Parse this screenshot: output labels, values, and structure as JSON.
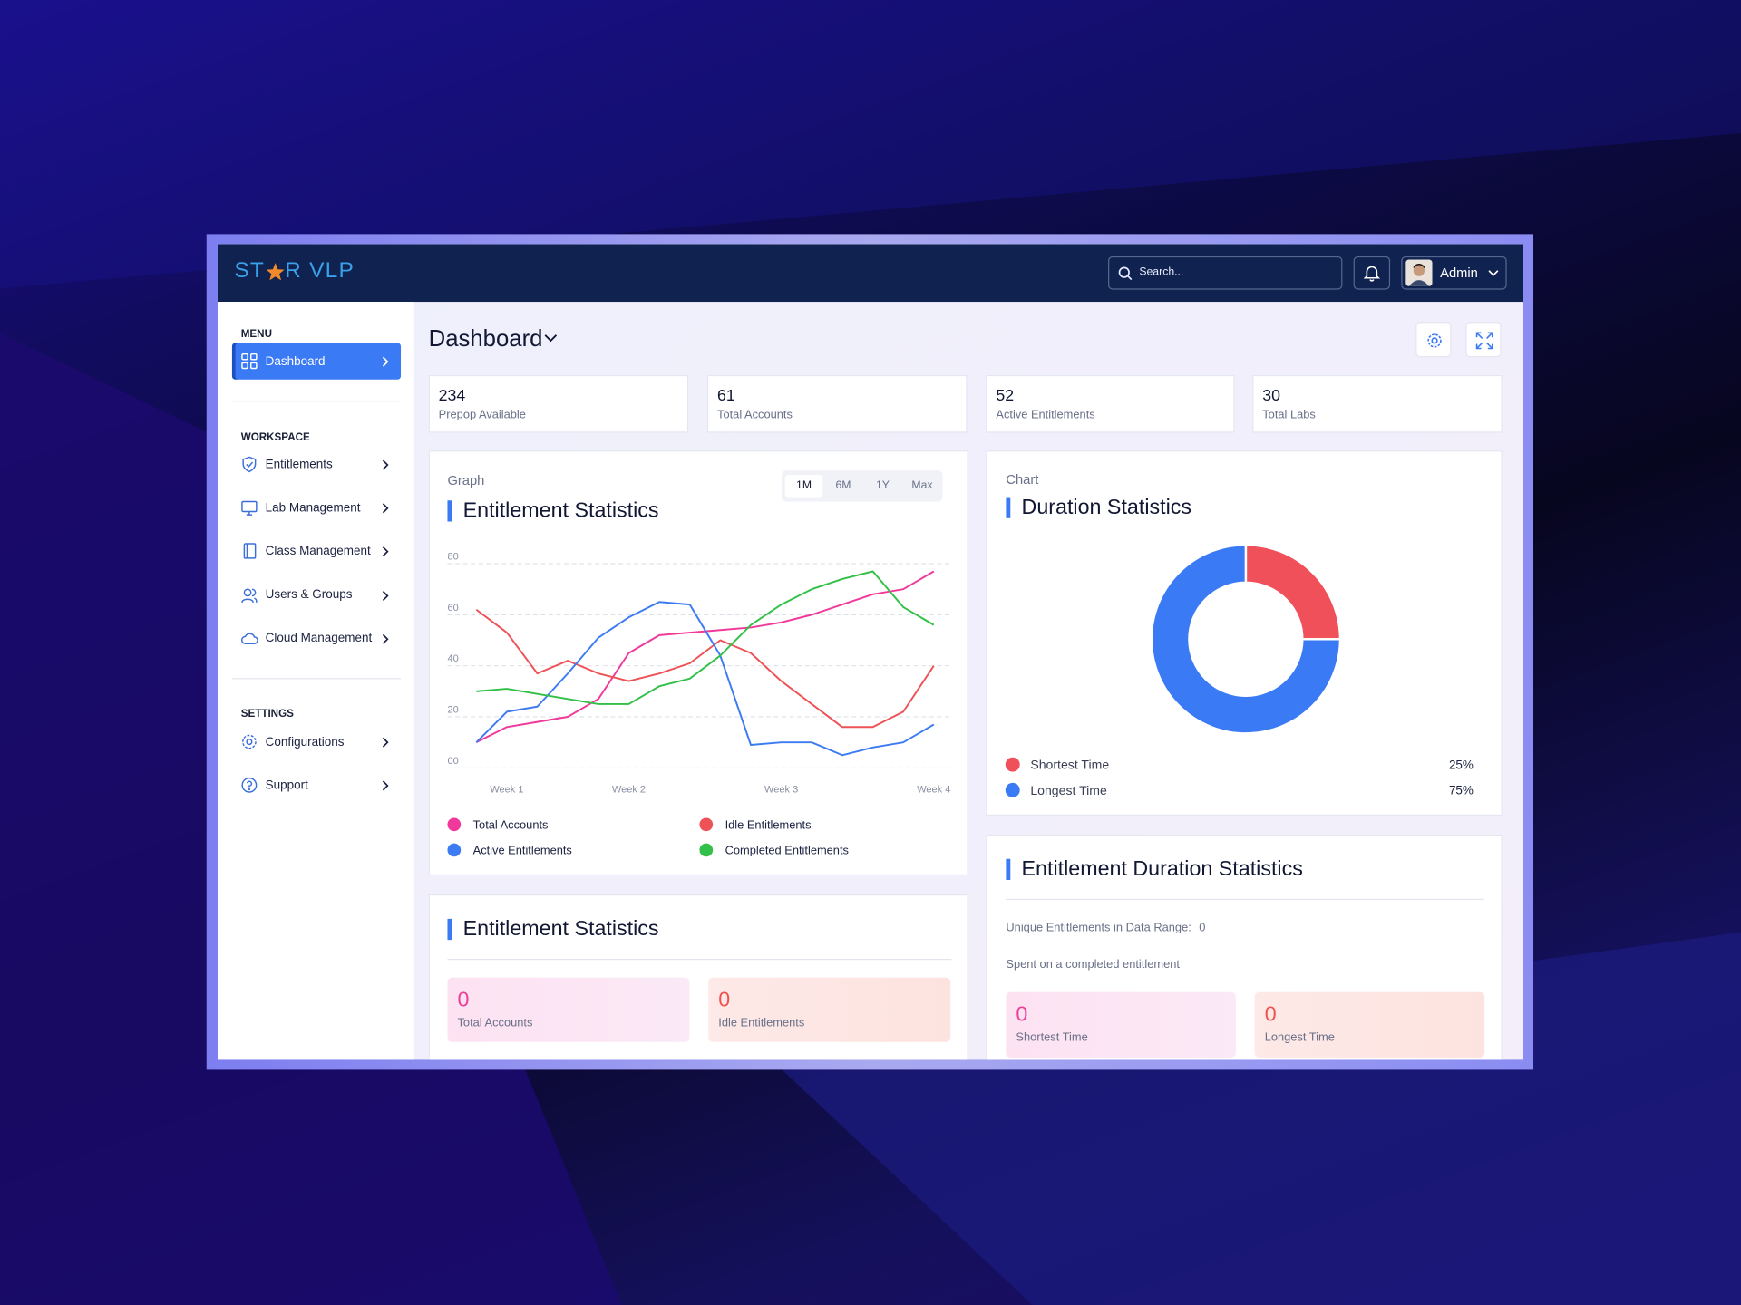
{
  "header": {
    "logo_start": "ST",
    "logo_end": "R VLP",
    "search_placeholder": "Search...",
    "user": "Admin"
  },
  "sidebar": [
    {
      "title": "MENU",
      "items": [
        "Dashboard"
      ]
    },
    {
      "title": "WORKSPACE",
      "items": [
        "Entitlements",
        "Lab Management",
        "Class Management",
        "Users & Groups",
        "Cloud Management"
      ]
    },
    {
      "title": "SETTINGS",
      "items": [
        "Configurations",
        "Support"
      ]
    }
  ],
  "page_title": "Dashboard",
  "stats": [
    {
      "value": 234,
      "label": "Prepop Available"
    },
    {
      "value": 61,
      "label": "Total Accounts"
    },
    {
      "value": 52,
      "label": "Active Entitlements"
    },
    {
      "value": 30,
      "label": "Total Labs"
    }
  ],
  "range_tabs": [
    "1M",
    "6M",
    "1Y",
    "Max"
  ],
  "chart_data": [
    {
      "type": "line",
      "subtitle": "Graph",
      "title": "Entitlement Statistics",
      "categories": [
        null,
        "Week 1",
        null,
        null,
        null,
        "Week 2",
        null,
        null,
        null,
        null,
        "Week 3",
        null,
        null,
        null,
        null,
        "Week 4"
      ],
      "ylim": [
        0,
        80
      ],
      "yticks": [
        {
          "value": 0,
          "label": "00"
        },
        20,
        40,
        60,
        80
      ],
      "grid": true,
      "series": [
        {
          "name": "Total Accounts",
          "color": "#f0399a",
          "values": [
            10,
            16,
            18,
            20,
            27,
            45,
            52,
            53,
            54,
            55,
            57,
            60,
            64,
            68,
            70,
            77
          ]
        },
        {
          "name": "Idle Entitlements",
          "color": "#ee5257",
          "values": [
            62,
            53,
            37,
            42,
            37,
            34,
            37,
            41,
            50,
            45,
            34,
            25,
            16,
            16,
            22,
            40
          ]
        },
        {
          "name": "Active Entitlements",
          "color": "#3d7bf2",
          "values": [
            10,
            22,
            24,
            37,
            51,
            59,
            65,
            64,
            44,
            9,
            10,
            10,
            5,
            8,
            10,
            17
          ]
        },
        {
          "name": "Completed Entitlements",
          "color": "#33c048",
          "values": [
            30,
            31,
            29,
            27,
            25,
            25,
            32,
            35,
            44,
            56,
            64,
            70,
            74,
            77,
            63,
            56
          ]
        }
      ]
    },
    {
      "type": "donut",
      "subtitle": "Chart",
      "title": "Duration Statistics",
      "categories": [
        "Shortest Time",
        "Longest Time"
      ],
      "values": [
        25,
        75
      ],
      "value_labels": [
        "25%",
        "75%"
      ],
      "colors": [
        "#f0505a",
        "#3b7af5"
      ]
    }
  ],
  "summary": {
    "title": "Entitlement Statistics",
    "cards": [
      {
        "value": 0,
        "label": "Total Accounts"
      },
      {
        "value": 0,
        "label": "Idle Entitlements"
      }
    ]
  },
  "duration_summary": {
    "title": "Entitlement Duration Statistics",
    "unique_label": "Unique Entitlements in Data Range:",
    "unique_value": 0,
    "spent_label": "Spent on a completed entitlement",
    "cards": [
      {
        "value": 0,
        "label": "Shortest Time"
      },
      {
        "value": 0,
        "label": "Longest Time"
      }
    ]
  }
}
